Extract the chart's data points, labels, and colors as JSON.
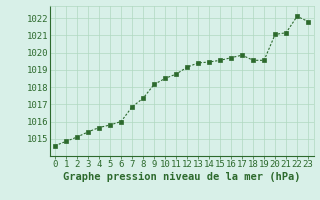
{
  "x": [
    0,
    1,
    2,
    3,
    4,
    5,
    6,
    7,
    8,
    9,
    10,
    11,
    12,
    13,
    14,
    15,
    16,
    17,
    18,
    19,
    20,
    21,
    22,
    23
  ],
  "y": [
    1014.6,
    1014.85,
    1015.1,
    1015.4,
    1015.65,
    1015.8,
    1016.0,
    1016.85,
    1017.35,
    1018.15,
    1018.5,
    1018.75,
    1019.15,
    1019.4,
    1019.45,
    1019.55,
    1019.7,
    1019.85,
    1019.55,
    1019.55,
    1021.05,
    1021.15,
    1022.1,
    1021.8
  ],
  "line_color": "#2d6a2d",
  "marker_color": "#2d6a2d",
  "bg_color": "#d8f0e8",
  "grid_color": "#b0d8c0",
  "title": "Graphe pression niveau de la mer (hPa)",
  "ylim_min": 1014.0,
  "ylim_max": 1022.7,
  "yticks": [
    1015,
    1016,
    1017,
    1018,
    1019,
    1020,
    1021,
    1022
  ],
  "tick_fontsize": 6.5,
  "title_fontsize": 7.5
}
